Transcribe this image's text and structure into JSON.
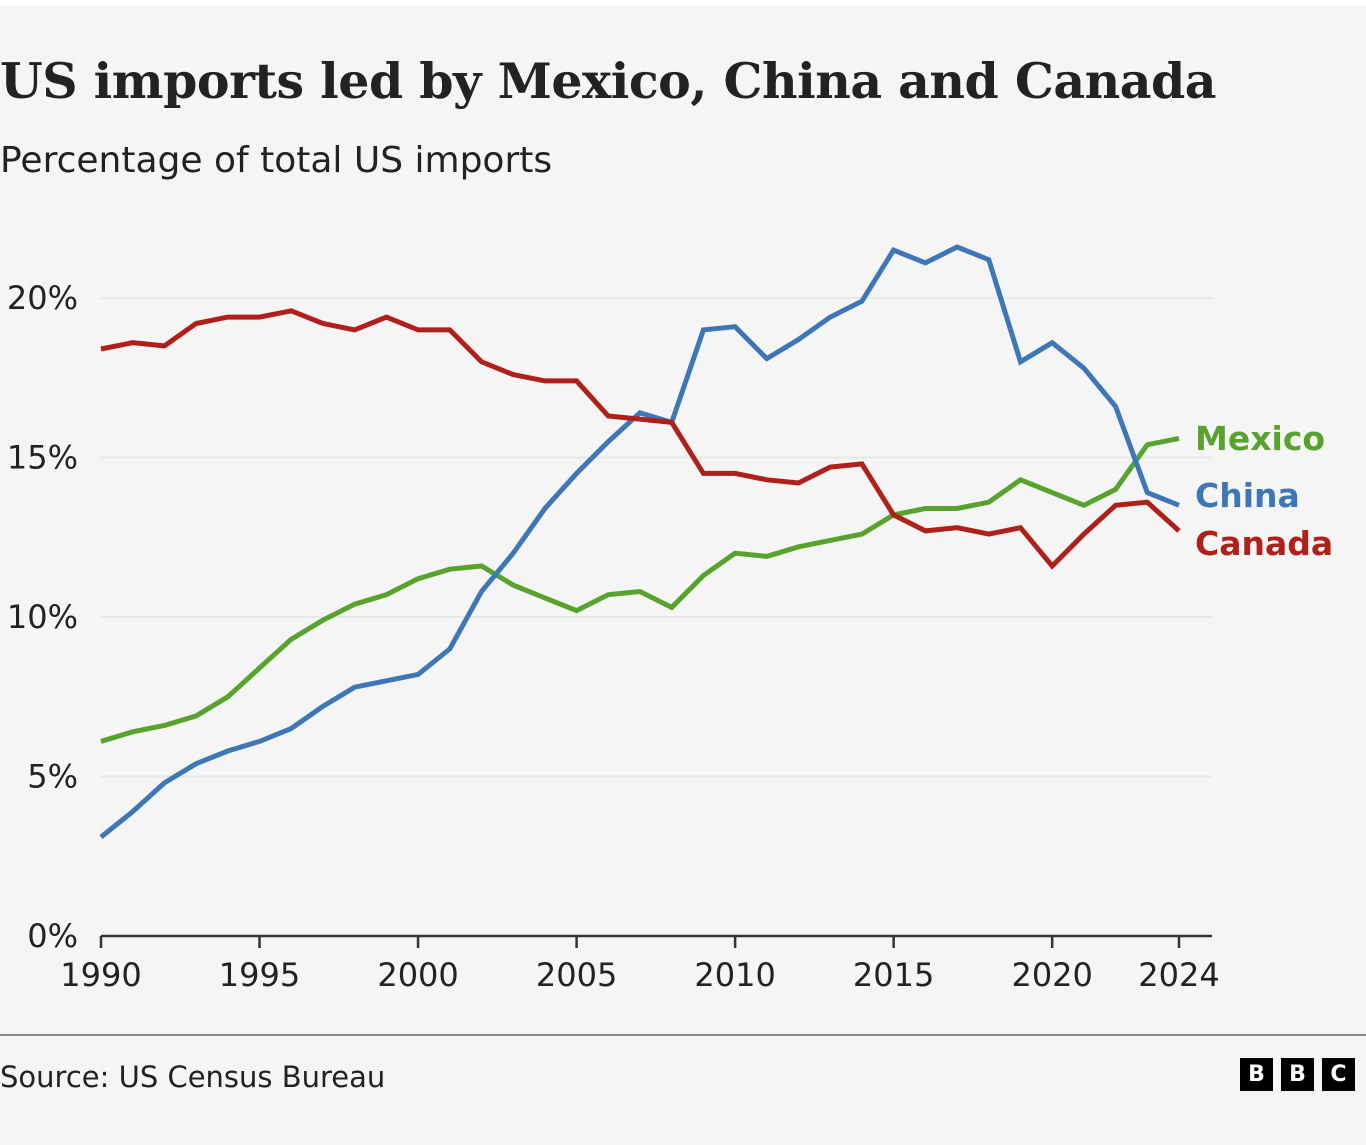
{
  "header": {
    "title": "US imports led by Mexico, China and Canada",
    "subtitle": "Percentage of total US imports"
  },
  "footer": {
    "source": "Source: US Census Bureau",
    "logo_letters": [
      "B",
      "B",
      "C"
    ]
  },
  "colors": {
    "mexico": "#58a22e",
    "china": "#3f77b6",
    "canada": "#b0201b",
    "grid": "#e8e8e8",
    "axis": "#333333",
    "background": "#f5f5f5"
  },
  "chart_data": {
    "type": "line",
    "title": "US imports led by Mexico, China and Canada",
    "subtitle": "Percentage of total US imports",
    "xlabel": "",
    "ylabel": "",
    "x": [
      1990,
      1991,
      1992,
      1993,
      1994,
      1995,
      1996,
      1997,
      1998,
      1999,
      2000,
      2001,
      2002,
      2003,
      2004,
      2005,
      2006,
      2007,
      2008,
      2009,
      2010,
      2011,
      2012,
      2013,
      2014,
      2015,
      2016,
      2017,
      2018,
      2019,
      2020,
      2021,
      2022,
      2023,
      2024
    ],
    "xlim": [
      1990,
      2024
    ],
    "ylim": [
      0,
      20
    ],
    "x_ticks": [
      1990,
      1995,
      2000,
      2005,
      2010,
      2015,
      2020,
      2024
    ],
    "x_tick_labels": [
      "1990",
      "1995",
      "2000",
      "2005",
      "2010",
      "2015",
      "2020",
      "2024"
    ],
    "y_ticks": [
      0,
      5,
      10,
      15,
      20
    ],
    "y_tick_labels": [
      "0%",
      "5%",
      "10%",
      "15%",
      "20%"
    ],
    "grid": true,
    "legend": "direct-labels-right",
    "series": [
      {
        "name": "Mexico",
        "color": "#58a22e",
        "values": [
          6.1,
          6.4,
          6.6,
          6.9,
          7.5,
          8.4,
          9.3,
          9.9,
          10.4,
          10.7,
          11.2,
          11.5,
          11.6,
          11.0,
          10.6,
          10.2,
          10.7,
          10.8,
          10.3,
          11.3,
          12.0,
          11.9,
          12.2,
          12.4,
          12.6,
          13.2,
          13.4,
          13.4,
          13.6,
          14.3,
          13.9,
          13.5,
          14.0,
          15.4,
          15.6
        ]
      },
      {
        "name": "China",
        "color": "#3f77b6",
        "values": [
          3.1,
          3.9,
          4.8,
          5.4,
          5.8,
          6.1,
          6.5,
          7.2,
          7.8,
          8.0,
          8.2,
          9.0,
          10.8,
          12.0,
          13.4,
          14.5,
          15.5,
          16.4,
          16.1,
          19.0,
          19.1,
          18.1,
          18.7,
          19.4,
          19.9,
          21.5,
          21.1,
          21.6,
          21.2,
          18.0,
          18.6,
          17.8,
          16.6,
          13.9,
          13.5
        ]
      },
      {
        "name": "Canada",
        "color": "#b0201b",
        "values": [
          18.4,
          18.6,
          18.5,
          19.2,
          19.4,
          19.4,
          19.6,
          19.2,
          19.0,
          19.4,
          19.0,
          19.0,
          18.0,
          17.6,
          17.4,
          17.4,
          16.3,
          16.2,
          16.1,
          14.5,
          14.5,
          14.3,
          14.2,
          14.7,
          14.8,
          13.2,
          12.7,
          12.8,
          12.6,
          12.8,
          11.6,
          12.6,
          13.5,
          13.6,
          12.7
        ]
      }
    ]
  }
}
